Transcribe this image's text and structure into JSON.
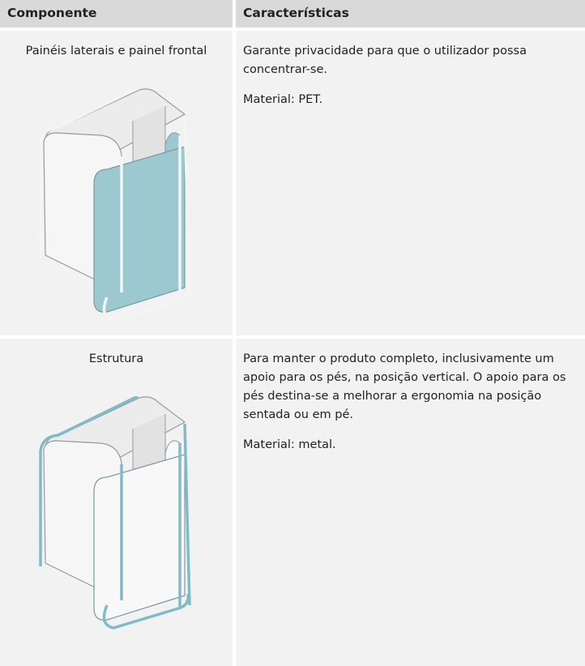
{
  "header": [
    "Componente",
    "Características"
  ],
  "rows": [
    {
      "component": "Painéis laterais e painel frontal",
      "paragraphs": [
        "Garante privacidade para que o utilizador possa concentrar-se.",
        "Material: PET."
      ]
    },
    {
      "component": "Estrutura",
      "paragraphs": [
        "Para manter o produto completo, inclusivamente um apoio para os pés, na posição vertical. O apoio para os pés destina-se a melhorar a ergonomia na posição sentada ou em pé.",
        "Material: metal."
      ]
    }
  ]
}
